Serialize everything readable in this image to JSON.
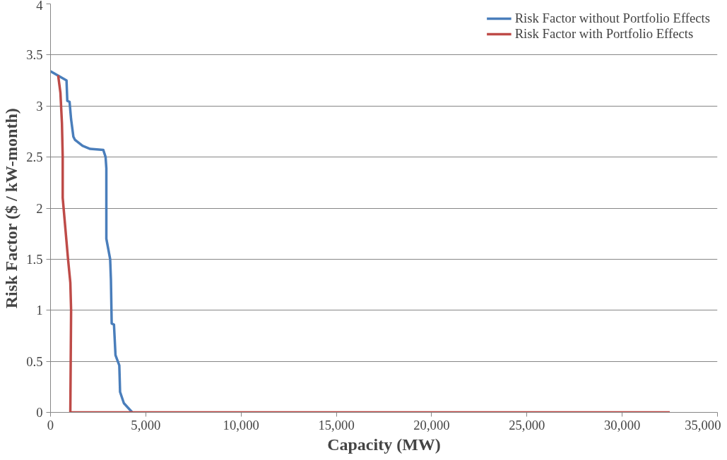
{
  "chart_data": {
    "type": "line",
    "xlabel": "Capacity (MW)",
    "ylabel": "Risk Factor ($ / kW-month)",
    "xlim": [
      0,
      35000
    ],
    "xticks": [
      {
        "value": 0,
        "label": "0"
      },
      {
        "value": 5000,
        "label": "5,000"
      },
      {
        "value": 10000,
        "label": "10,000"
      },
      {
        "value": 15000,
        "label": "15,000"
      },
      {
        "value": 20000,
        "label": "20,000"
      },
      {
        "value": 25000,
        "label": "25,000"
      },
      {
        "value": 30000,
        "label": "30,000"
      },
      {
        "value": 35000,
        "label": "35,000"
      }
    ],
    "ylim": [
      0,
      4
    ],
    "yticks": [
      0,
      0.5,
      1,
      1.5,
      2,
      2.5,
      3,
      3.5,
      4
    ],
    "grid": "y",
    "legend": "top right",
    "marker": "none",
    "line_style": "solid",
    "series": [
      {
        "name": "Risk Factor without Portfolio Effects",
        "color": "#4a7ebb",
        "x": [
          0,
          840,
          880,
          1000,
          1080,
          1200,
          1280,
          1680,
          2080,
          2770,
          2890,
          2930,
          2930,
          3130,
          3170,
          3210,
          3330,
          3410,
          3610,
          3650,
          3850,
          4290
        ],
        "values": [
          3.34,
          3.25,
          3.05,
          3.04,
          2.87,
          2.7,
          2.67,
          2.61,
          2.58,
          2.57,
          2.5,
          2.39,
          1.7,
          1.5,
          1.3,
          0.87,
          0.86,
          0.56,
          0.46,
          0.2,
          0.09,
          0
        ]
      },
      {
        "name": "Risk Factor with Portfolio Effects",
        "color": "#be4b48",
        "x": [
          400,
          520,
          600,
          640,
          640,
          920,
          1040,
          1080,
          1040,
          32500
        ],
        "values": [
          3.3,
          3.13,
          2.83,
          2.5,
          2.1,
          1.5,
          1.27,
          1.0,
          0,
          0
        ]
      }
    ]
  }
}
